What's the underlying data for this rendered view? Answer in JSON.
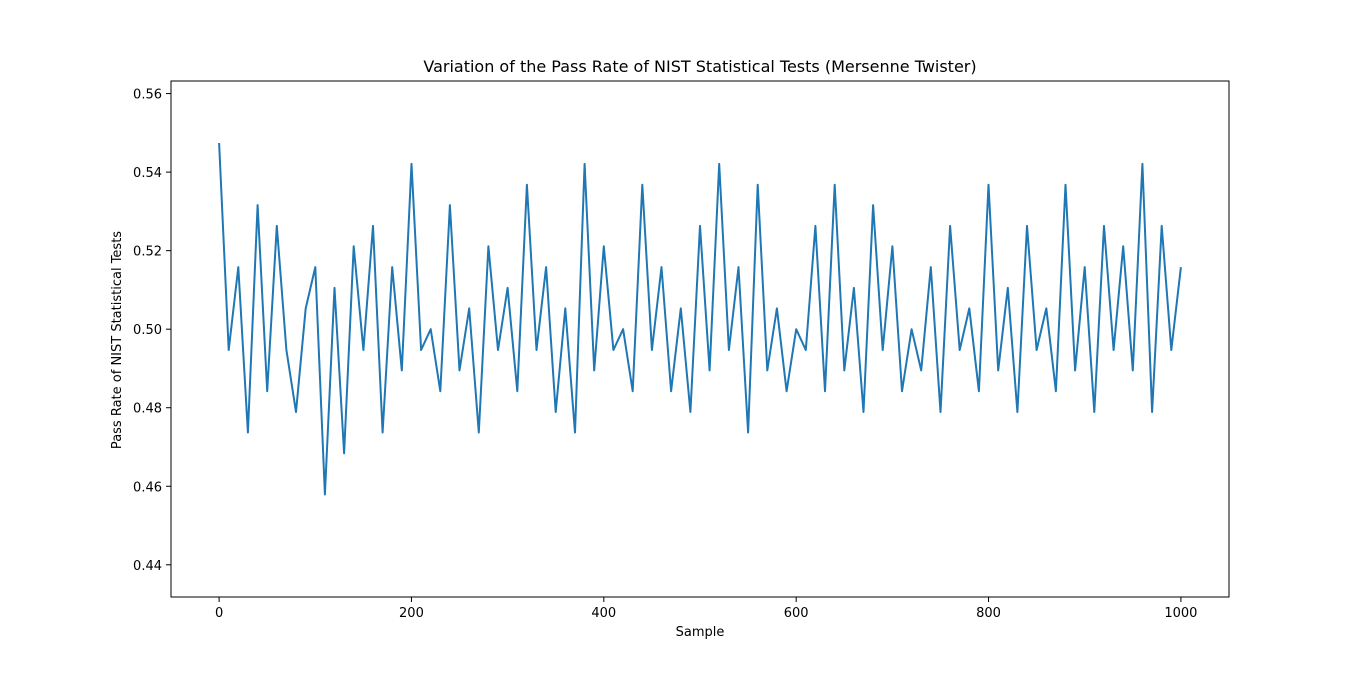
{
  "chart_data": {
    "type": "line",
    "title": "Variation of the Pass Rate of NIST Statistical Tests (Mersenne Twister)",
    "xlabel": "Sample",
    "ylabel": "Pass Rate of NIST Statistical Tests",
    "xlim": [
      -50,
      1050
    ],
    "ylim": [
      0.4318,
      0.5632
    ],
    "xticks": [
      0,
      200,
      400,
      600,
      800,
      1000
    ],
    "xtick_labels": [
      "0",
      "200",
      "400",
      "600",
      "800",
      "1000"
    ],
    "yticks": [
      0.44,
      0.46,
      0.48,
      0.5,
      0.52,
      0.54,
      0.56
    ],
    "ytick_labels": [
      "0.44",
      "0.46",
      "0.48",
      "0.50",
      "0.52",
      "0.54",
      "0.56"
    ],
    "grid": false,
    "series": [
      {
        "color": "#1f77b4",
        "x_start": 0,
        "x_step": 10,
        "values": [
          0.5474,
          0.4947,
          0.5158,
          0.4737,
          0.5316,
          0.4842,
          0.5263,
          0.4947,
          0.4789,
          0.5053,
          0.5158,
          0.4579,
          0.5105,
          0.4684,
          0.5211,
          0.4947,
          0.5263,
          0.4737,
          0.5158,
          0.4895,
          0.5421,
          0.4947,
          0.5,
          0.4842,
          0.5316,
          0.4895,
          0.5053,
          0.4737,
          0.5211,
          0.4947,
          0.5105,
          0.4842,
          0.5368,
          0.4947,
          0.5158,
          0.4789,
          0.5053,
          0.4737,
          0.5421,
          0.4895,
          0.5211,
          0.4947,
          0.5,
          0.4842,
          0.5368,
          0.4947,
          0.5158,
          0.4842,
          0.5053,
          0.4789,
          0.5263,
          0.4895,
          0.5421,
          0.4947,
          0.5158,
          0.4737,
          0.5368,
          0.4895,
          0.5053,
          0.4842,
          0.5,
          0.4947,
          0.5263,
          0.4842,
          0.5368,
          0.4895,
          0.5105,
          0.4789,
          0.5316,
          0.4947,
          0.5211,
          0.4842,
          0.5,
          0.4895,
          0.5158,
          0.4789,
          0.5263,
          0.4947,
          0.5053,
          0.4842,
          0.5368,
          0.4895,
          0.5105,
          0.4789,
          0.5263,
          0.4947,
          0.5053,
          0.4842,
          0.5368,
          0.4895,
          0.5158,
          0.4789,
          0.5263,
          0.4947,
          0.5211,
          0.4895,
          0.5421,
          0.4789,
          0.5263,
          0.4947,
          0.5158
        ]
      }
    ]
  }
}
